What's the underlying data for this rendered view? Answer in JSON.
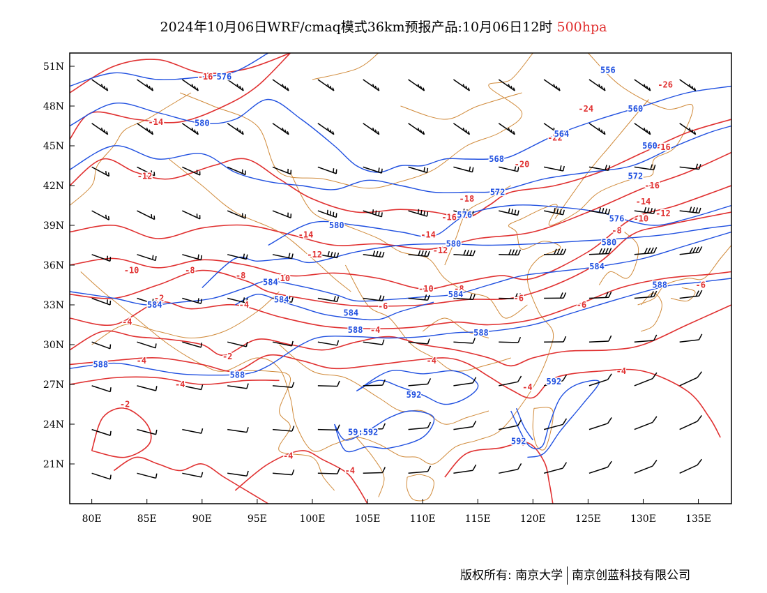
{
  "title": {
    "main": "2024年10月06日WRF/cmaq模式36km预报产品:10月06日12时",
    "level": "500hpa"
  },
  "axes": {
    "x_ticks": [
      "80E",
      "85E",
      "90E",
      "95E",
      "100E",
      "105E",
      "110E",
      "115E",
      "120E",
      "125E",
      "130E",
      "135E"
    ],
    "y_ticks": [
      "51N",
      "48N",
      "45N",
      "42N",
      "39N",
      "36N",
      "33N",
      "30N",
      "27N",
      "24N",
      "21N"
    ]
  },
  "map": {
    "lon_range": [
      78,
      138
    ],
    "lat_range": [
      18,
      52
    ],
    "colors": {
      "temperature": "#e03030",
      "geopotential_height": "#2050e0",
      "boundary": "#d08a3a",
      "wind_barb": "#000000"
    }
  },
  "temperature_labels": [
    {
      "text": "-16",
      "lon": 90.3,
      "lat": 50.2
    },
    {
      "text": "-14",
      "lon": 85.8,
      "lat": 46.8
    },
    {
      "text": "-12",
      "lon": 84.8,
      "lat": 42.7
    },
    {
      "text": "-14",
      "lon": 99.4,
      "lat": 38.3
    },
    {
      "text": "-12",
      "lon": 100.2,
      "lat": 36.8
    },
    {
      "text": "-10",
      "lon": 83.6,
      "lat": 35.6
    },
    {
      "text": "-8",
      "lon": 88.9,
      "lat": 35.6
    },
    {
      "text": "-8",
      "lon": 93.5,
      "lat": 35.2
    },
    {
      "text": "-10",
      "lon": 97.3,
      "lat": 35.0
    },
    {
      "text": "-2",
      "lon": 86.1,
      "lat": 33.5
    },
    {
      "text": "-4",
      "lon": 93.8,
      "lat": 33.0
    },
    {
      "text": "-10",
      "lon": 110.3,
      "lat": 34.2
    },
    {
      "text": "-8",
      "lon": 113.3,
      "lat": 34.2
    },
    {
      "text": "-6",
      "lon": 106.4,
      "lat": 32.9
    },
    {
      "text": "-6",
      "lon": 118.7,
      "lat": 33.5
    },
    {
      "text": "-4",
      "lon": 105.7,
      "lat": 31.1
    },
    {
      "text": "-4",
      "lon": 83.2,
      "lat": 31.7
    },
    {
      "text": "-2",
      "lon": 92.3,
      "lat": 29.1
    },
    {
      "text": "-4",
      "lon": 84.5,
      "lat": 28.8
    },
    {
      "text": "-4",
      "lon": 110.8,
      "lat": 28.8
    },
    {
      "text": "-4",
      "lon": 88.0,
      "lat": 27.0
    },
    {
      "text": "-2",
      "lon": 83.0,
      "lat": 25.5
    },
    {
      "text": "-4",
      "lon": 119.5,
      "lat": 26.8
    },
    {
      "text": "-4",
      "lon": 97.8,
      "lat": 21.6
    },
    {
      "text": "-4",
      "lon": 103.4,
      "lat": 20.5
    },
    {
      "text": "-4",
      "lon": 118.8,
      "lat": 22.6
    },
    {
      "text": "-4",
      "lon": 128.0,
      "lat": 28.0
    },
    {
      "text": "-14",
      "lon": 110.5,
      "lat": 38.3
    },
    {
      "text": "-12",
      "lon": 111.6,
      "lat": 37.1
    },
    {
      "text": "-16",
      "lon": 112.4,
      "lat": 39.6
    },
    {
      "text": "-18",
      "lon": 114.0,
      "lat": 41.0
    },
    {
      "text": "-20",
      "lon": 119.0,
      "lat": 43.6
    },
    {
      "text": "-22",
      "lon": 122.0,
      "lat": 45.6
    },
    {
      "text": "-24",
      "lon": 124.8,
      "lat": 47.8
    },
    {
      "text": "-26",
      "lon": 132.0,
      "lat": 49.6
    },
    {
      "text": "-16",
      "lon": 131.8,
      "lat": 44.9
    },
    {
      "text": "-16",
      "lon": 130.8,
      "lat": 42.0
    },
    {
      "text": "-14",
      "lon": 130.0,
      "lat": 40.8
    },
    {
      "text": "-12",
      "lon": 131.8,
      "lat": 39.9
    },
    {
      "text": "-10",
      "lon": 129.8,
      "lat": 39.5
    },
    {
      "text": "-8",
      "lon": 127.6,
      "lat": 38.6
    },
    {
      "text": "-6",
      "lon": 124.4,
      "lat": 33.0
    },
    {
      "text": "-6",
      "lon": 135.2,
      "lat": 34.5
    }
  ],
  "height_labels": [
    {
      "text": "576",
      "lon": 92.0,
      "lat": 50.2
    },
    {
      "text": "580",
      "lon": 90.0,
      "lat": 46.7
    },
    {
      "text": "580",
      "lon": 102.2,
      "lat": 39.0
    },
    {
      "text": "584",
      "lon": 96.2,
      "lat": 34.7
    },
    {
      "text": "584",
      "lon": 85.7,
      "lat": 33.0
    },
    {
      "text": "584",
      "lon": 97.2,
      "lat": 33.4
    },
    {
      "text": "584",
      "lon": 103.5,
      "lat": 32.4
    },
    {
      "text": "588",
      "lon": 103.9,
      "lat": 31.1
    },
    {
      "text": "584",
      "lon": 113.0,
      "lat": 33.8
    },
    {
      "text": "588",
      "lon": 80.8,
      "lat": 28.5
    },
    {
      "text": "588",
      "lon": 93.2,
      "lat": 27.7
    },
    {
      "text": "588",
      "lon": 115.3,
      "lat": 30.9
    },
    {
      "text": "592",
      "lon": 109.2,
      "lat": 26.2
    },
    {
      "text": "59:592",
      "lon": 104.6,
      "lat": 23.4
    },
    {
      "text": "592",
      "lon": 118.7,
      "lat": 22.7
    },
    {
      "text": "592",
      "lon": 121.9,
      "lat": 27.2
    },
    {
      "text": "588",
      "lon": 131.5,
      "lat": 34.5
    },
    {
      "text": "584",
      "lon": 125.8,
      "lat": 35.9
    },
    {
      "text": "580",
      "lon": 126.9,
      "lat": 37.7
    },
    {
      "text": "576",
      "lon": 127.6,
      "lat": 39.5
    },
    {
      "text": "576",
      "lon": 113.8,
      "lat": 39.8
    },
    {
      "text": "580",
      "lon": 112.8,
      "lat": 37.6
    },
    {
      "text": "572",
      "lon": 116.8,
      "lat": 41.5
    },
    {
      "text": "572",
      "lon": 129.3,
      "lat": 42.7
    },
    {
      "text": "568",
      "lon": 116.7,
      "lat": 44.0
    },
    {
      "text": "564",
      "lon": 122.6,
      "lat": 45.9
    },
    {
      "text": "560",
      "lon": 129.3,
      "lat": 47.8
    },
    {
      "text": "560",
      "lon": 130.6,
      "lat": 45.0
    },
    {
      "text": "556",
      "lon": 126.8,
      "lat": 50.7
    }
  ],
  "footer": {
    "copyright": "版权所有: 南京大学",
    "company": "南京创蓝科技有限公司"
  }
}
